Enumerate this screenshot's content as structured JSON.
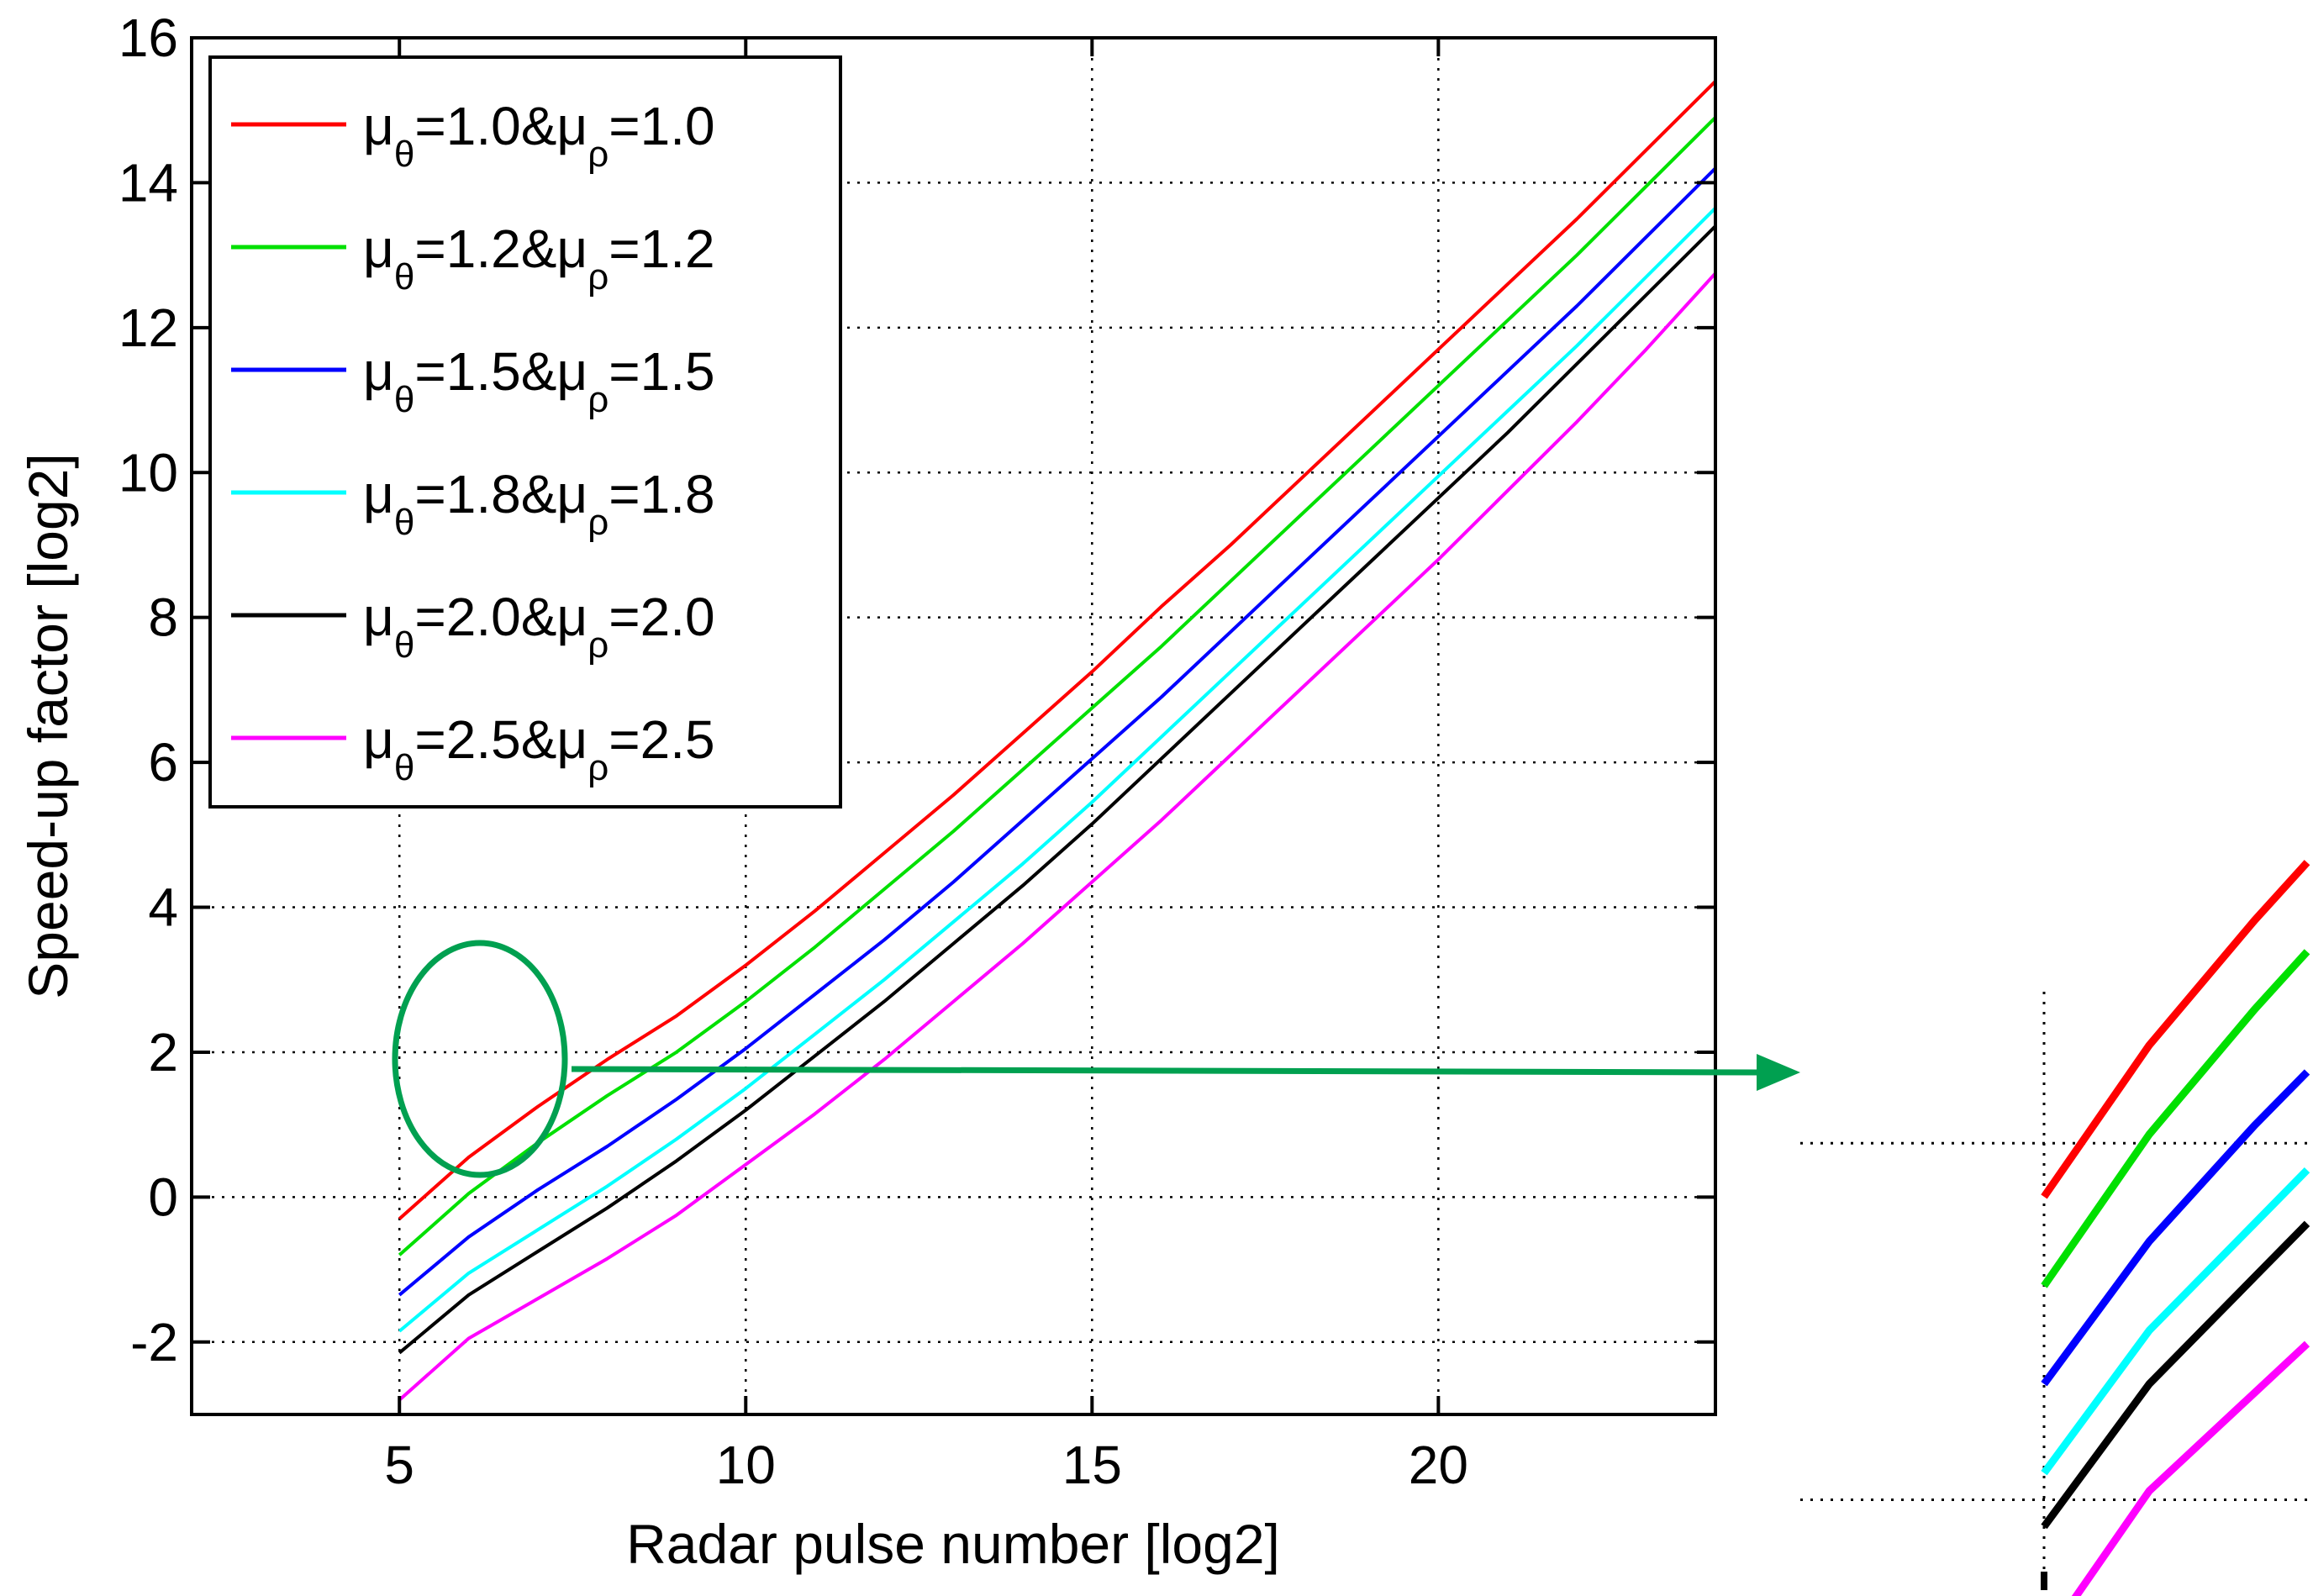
{
  "chart_data": {
    "type": "line",
    "xlabel": "Radar pulse number [log2]",
    "ylabel": "Speed-up factor [log2]",
    "xlim": [
      2,
      24
    ],
    "ylim": [
      -3,
      16
    ],
    "xticks": [
      5,
      10,
      15,
      20
    ],
    "yticks": [
      -2,
      0,
      2,
      4,
      6,
      8,
      10,
      12,
      14,
      16
    ],
    "grid": true,
    "legend_position": "top-left",
    "x": [
      5,
      6,
      7,
      8,
      9,
      10,
      11,
      12,
      13,
      14,
      15,
      16,
      17,
      18,
      19,
      20,
      21,
      22,
      23,
      24
    ],
    "series": [
      {
        "label": "μθ=1.0&μρ=1.0",
        "mu_theta": "=1.0&μ",
        "mu_rho": "=1.0",
        "color": "#ff0000",
        "values": [
          -0.3,
          0.55,
          1.25,
          1.9,
          2.5,
          3.2,
          3.95,
          4.75,
          5.55,
          6.4,
          7.25,
          8.15,
          9.0,
          9.9,
          10.8,
          11.7,
          12.6,
          13.5,
          14.45,
          15.4
        ]
      },
      {
        "label": "μθ=1.2&μρ=1.2",
        "mu_theta": "=1.2&μ",
        "mu_rho": "=1.2",
        "color": "#00e000",
        "values": [
          -0.8,
          0.05,
          0.75,
          1.4,
          2.0,
          2.7,
          3.45,
          4.25,
          5.05,
          5.9,
          6.75,
          7.6,
          8.5,
          9.4,
          10.3,
          11.2,
          12.1,
          13.0,
          13.95,
          14.9
        ]
      },
      {
        "label": "μθ=1.5&μρ=1.5",
        "mu_theta": "=1.5&μ",
        "mu_rho": "=1.5",
        "color": "#0000ff",
        "values": [
          -1.35,
          -0.55,
          0.1,
          0.7,
          1.35,
          2.05,
          2.8,
          3.55,
          4.35,
          5.2,
          6.05,
          6.9,
          7.8,
          8.7,
          9.6,
          10.5,
          11.4,
          12.3,
          13.25,
          14.2
        ]
      },
      {
        "label": "μθ=1.8&μρ=1.8",
        "mu_theta": "=1.8&μ",
        "mu_rho": "=1.8",
        "color": "#00ffff",
        "values": [
          -1.85,
          -1.05,
          -0.45,
          0.15,
          0.8,
          1.5,
          2.25,
          3.0,
          3.8,
          4.6,
          5.45,
          6.35,
          7.25,
          8.15,
          9.05,
          9.95,
          10.85,
          11.75,
          12.7,
          13.65
        ]
      },
      {
        "label": "μθ=2.0&μρ=2.0",
        "mu_theta": "=2.0&μ",
        "mu_rho": "=2.0",
        "color": "#000000",
        "values": [
          -2.15,
          -1.35,
          -0.75,
          -0.15,
          0.5,
          1.2,
          1.95,
          2.7,
          3.5,
          4.3,
          5.15,
          6.05,
          6.95,
          7.85,
          8.75,
          9.65,
          10.55,
          11.5,
          12.45,
          13.4
        ]
      },
      {
        "label": "μθ=2.5&μρ=2.5",
        "mu_theta": "=2.5&μ",
        "mu_rho": "=2.5",
        "color": "#ff00ff",
        "values": [
          -2.8,
          -1.95,
          -1.4,
          -0.85,
          -0.25,
          0.45,
          1.15,
          1.9,
          2.7,
          3.5,
          4.35,
          5.2,
          6.1,
          7.0,
          7.9,
          8.8,
          9.75,
          10.7,
          11.7,
          12.75
        ]
      }
    ],
    "annotations": [
      {
        "type": "ellipse",
        "color": "#00a050",
        "target_region": {
          "x": [
            5,
            7.5
          ],
          "y": [
            0.3,
            3.5
          ]
        }
      },
      {
        "type": "arrow",
        "color": "#00a050",
        "direction": "right",
        "meaning": "points to zoomed inset"
      }
    ],
    "inset": {
      "type": "line",
      "description_source": "zoomed view of the circled region",
      "grid": true,
      "gridlines": {
        "x": [
          5
        ],
        "y": [
          0,
          -2
        ]
      },
      "xlim": [
        5,
        7.5
      ],
      "ylim": [
        -2.45,
        0.85
      ],
      "series_colors": [
        "#ff0000",
        "#00e000",
        "#0000ff",
        "#00ffff",
        "#000000",
        "#ff00ff"
      ]
    }
  }
}
